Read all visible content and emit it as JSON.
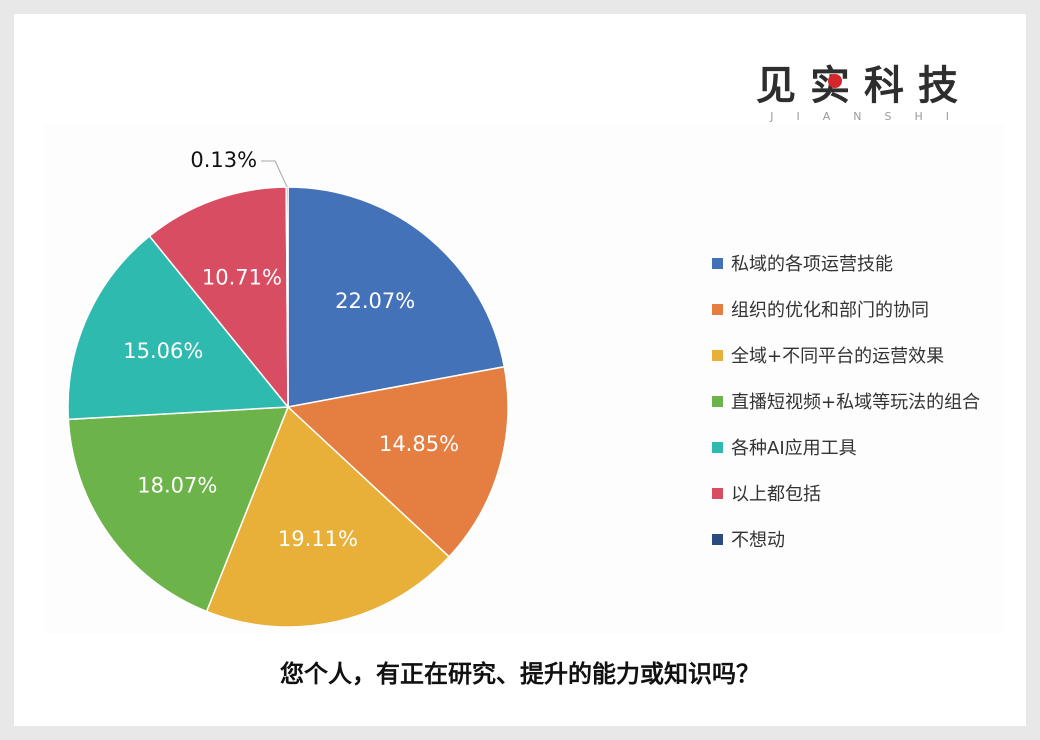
{
  "brand": {
    "name": "见实科技",
    "subtitle": "JIANSHI",
    "accent_color": "#d7262b"
  },
  "question": "您个人，有正在研究、提升的能力或知识吗？",
  "chart_data": {
    "type": "pie",
    "categories": [
      "私域的各项运营技能",
      "组织的优化和部门的协同",
      "全域+不同平台的运营效果",
      "直播短视频+私域等玩法的组合",
      "各种AI应用工具",
      "以上都包括",
      "不想动"
    ],
    "values": [
      22.07,
      14.85,
      19.11,
      18.07,
      15.06,
      10.71,
      0.13
    ],
    "value_labels": [
      "22.07%",
      "14.85%",
      "19.11%",
      "18.07%",
      "15.06%",
      "10.71%",
      "0.13%"
    ],
    "colors": [
      "#4472b8",
      "#e47e41",
      "#e8b039",
      "#6cb349",
      "#2ebaaf",
      "#d94d63",
      "#2b4a80"
    ],
    "legend_position": "right",
    "start_angle": "top",
    "direction": "clockwise"
  }
}
